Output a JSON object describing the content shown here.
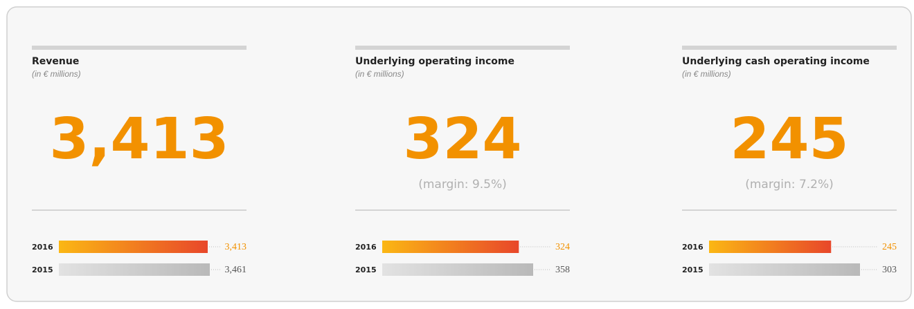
{
  "panels": [
    {
      "title": "Revenue",
      "subtitle": "(in € millions)",
      "headline": "3,413",
      "rows": [
        {
          "year": "2016",
          "value": 3413,
          "label": "3,413"
        },
        {
          "year": "2015",
          "value": 3461,
          "label": "3,461"
        }
      ]
    },
    {
      "title": "Underlying operating income",
      "subtitle": "(in € millions)",
      "headline": "324",
      "margin": "(margin: 9.5%)",
      "rows": [
        {
          "year": "2016",
          "value": 324,
          "label": "324"
        },
        {
          "year": "2015",
          "value": 358,
          "label": "358"
        }
      ]
    },
    {
      "title": "Underlying cash operating income",
      "subtitle": "(in € millions)",
      "headline": "245",
      "margin": "(margin: 7.2%)",
      "rows": [
        {
          "year": "2016",
          "value": 245,
          "label": "245"
        },
        {
          "year": "2015",
          "value": 303,
          "label": "303"
        }
      ]
    }
  ]
}
